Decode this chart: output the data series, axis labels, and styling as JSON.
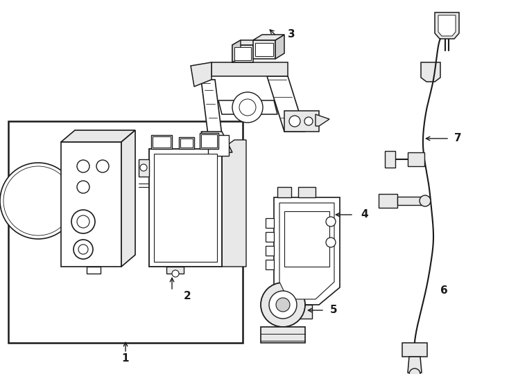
{
  "background_color": "#ffffff",
  "line_color": "#1a1a1a",
  "fig_width": 7.34,
  "fig_height": 5.4,
  "dpi": 100,
  "label_fontsize": 11,
  "label_color": "#1a1a1a"
}
